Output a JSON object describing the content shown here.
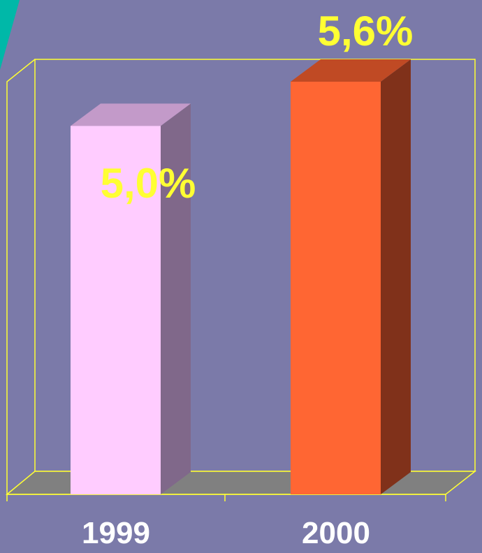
{
  "colors": {
    "background": "#7b7aa9",
    "frame": "#ffff33",
    "floor": "#808080",
    "accent_stripe": "#00b8a8",
    "value_text": "#ffff33",
    "category_text": "#ffffff"
  },
  "chart_data": {
    "type": "bar",
    "categories": [
      "1999",
      "2000"
    ],
    "values": [
      5.0,
      5.6
    ],
    "value_labels": [
      "5,0%",
      "5,6%"
    ],
    "bar_colors": [
      {
        "front": "#ffccff",
        "top": "#c39ac9",
        "side": "#80688a"
      },
      {
        "front": "#ff6633",
        "top": "#c04a24",
        "side": "#80311a"
      }
    ],
    "ylim": [
      0,
      6
    ],
    "grid": false,
    "legend": "none"
  }
}
